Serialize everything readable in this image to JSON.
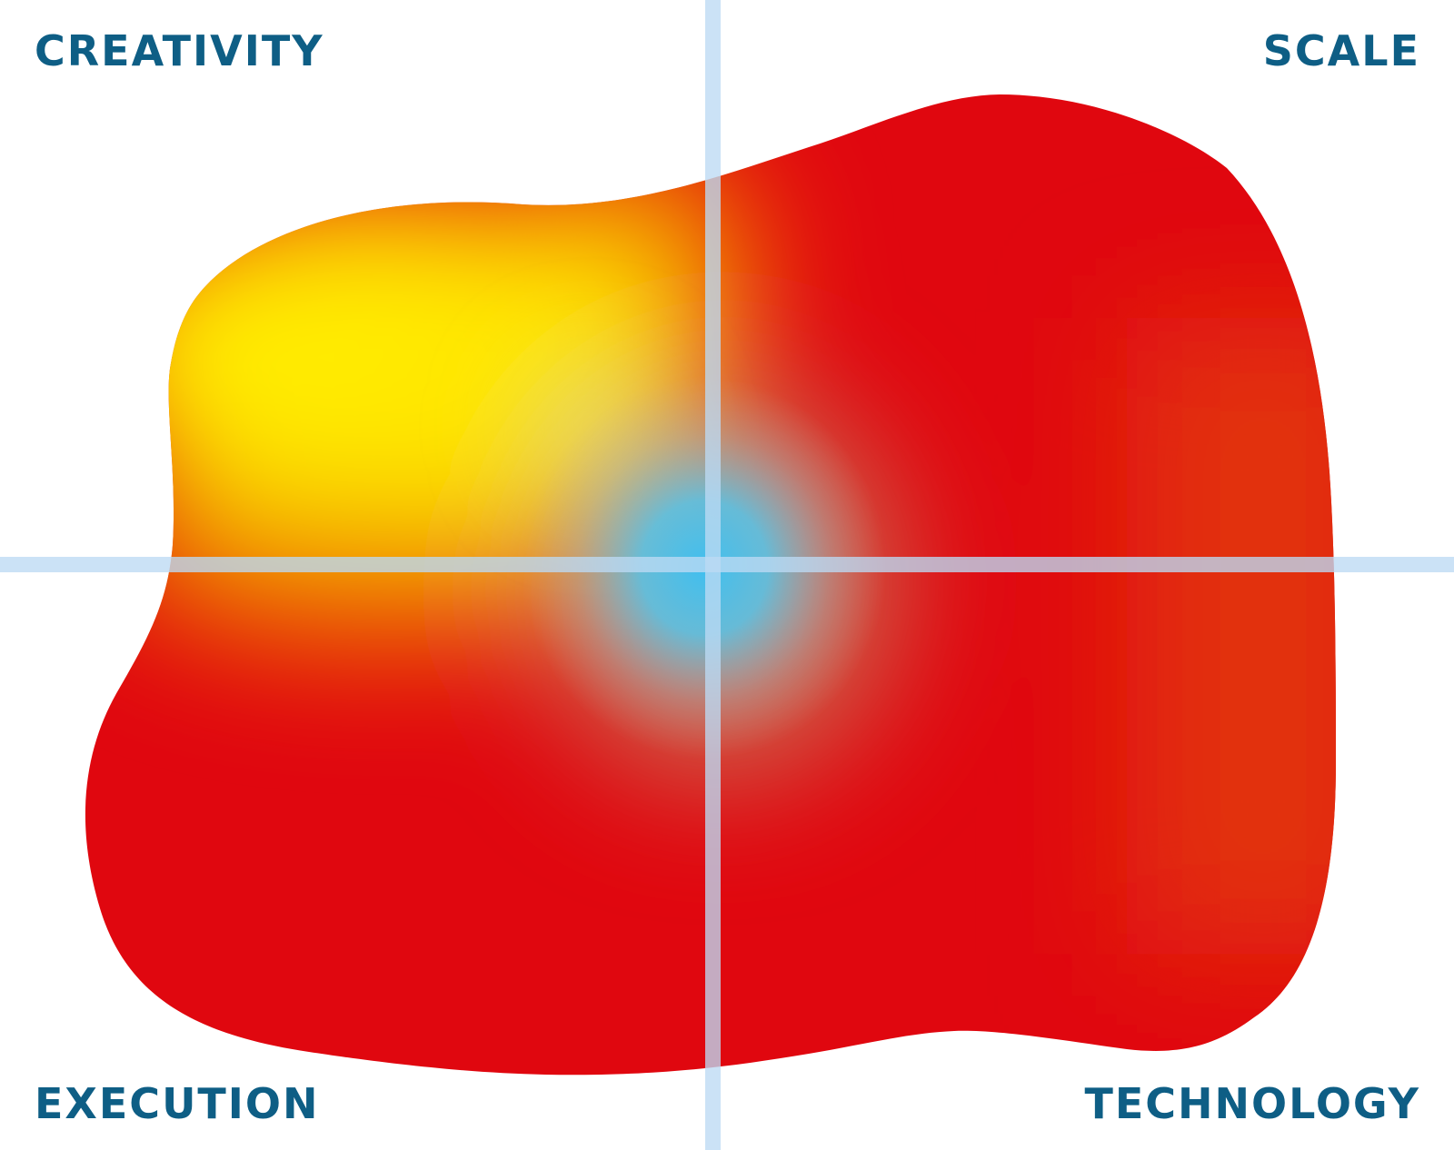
{
  "labels": {
    "top_left": "CREATIVITY",
    "top_right": "SCALE",
    "bottom_left": "EXECUTION",
    "bottom_right": "TECHNOLOGY"
  },
  "colors": {
    "label": "#0E5E85",
    "axis": "#BDDAF3",
    "blob_red": "#E0070F",
    "blob_orange_red": "#E2300E",
    "blob_orange": "#F08A00",
    "blob_yellow": "#FFEB00",
    "center_blue": "#40BFEF",
    "background": "#FFFFFF"
  }
}
